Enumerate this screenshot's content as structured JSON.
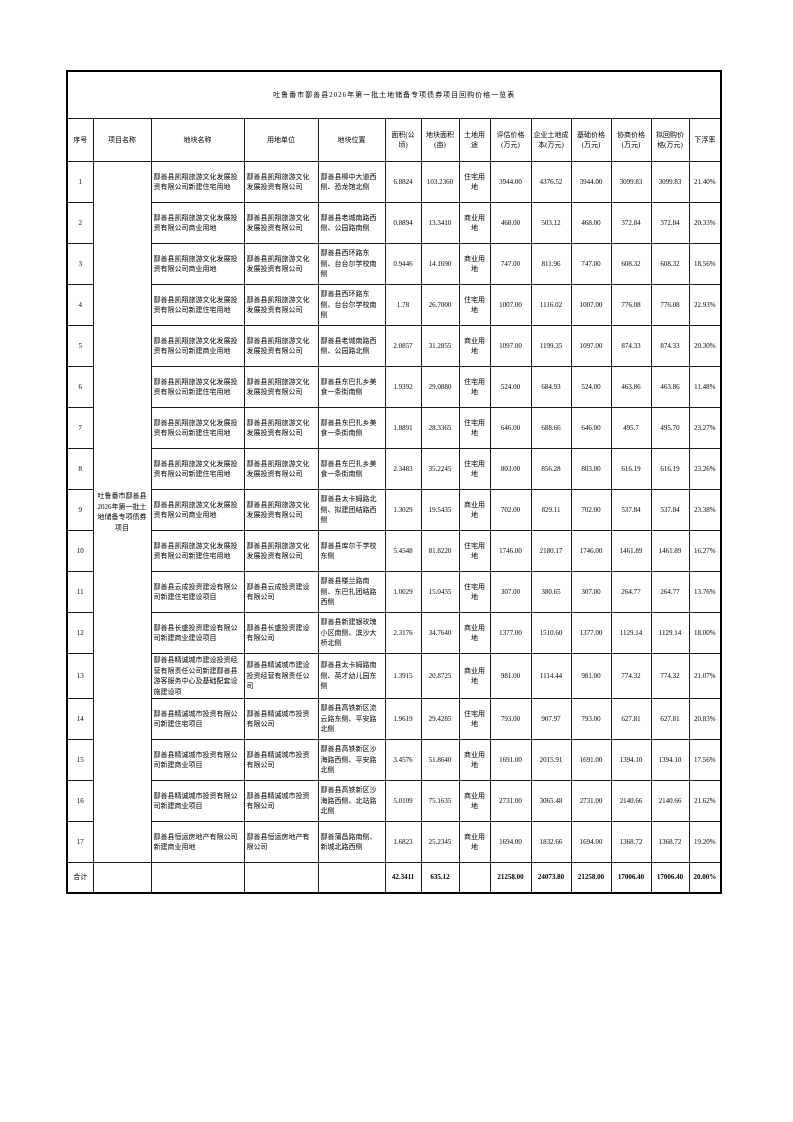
{
  "table": {
    "title": "吐鲁番市鄯善县2026年第一批土地储备专项债券项目回购价格一览表",
    "columns": [
      "序号",
      "项目名称",
      "地块名称",
      "用地单位",
      "地块位置",
      "面积(公顷)",
      "地块面积(亩)",
      "土地用途",
      "评估价格(万元)",
      "企业土地成本(万元)",
      "基础价格(万元)",
      "协商价格(万元)",
      "拟回购价格(万元)",
      "下浮率"
    ],
    "project_name": "吐鲁番市鄯善县2026年第一批土地储备专项债券项目",
    "rows": [
      {
        "no": "1",
        "plot_name": "鄯善县凯翔旅游文化发展投资有限公司新建住宅用地",
        "unit": "鄯善县凯翔旅游文化发展投资有限公司",
        "location": "鄯善县柳中大道西侧、恐龙馆北侧",
        "area_ha": "6.8824",
        "area_mu": "103.2360",
        "land_use": "住宅用地",
        "eval_price": "3944.00",
        "enterprise_cost": "4376.52",
        "base_price": "3944.00",
        "negotiated_price": "3099.83",
        "repurchase_price": "3099.83",
        "discount_rate": "21.40%"
      },
      {
        "no": "2",
        "plot_name": "鄯善县凯翔旅游文化发展投资有限公司商业用地",
        "unit": "鄯善县凯翔旅游文化发展投资有限公司",
        "location": "鄯善县老城南路西侧、公园路南侧",
        "area_ha": "0.8894",
        "area_mu": "13.3410",
        "land_use": "商业用地",
        "eval_price": "468.00",
        "enterprise_cost": "503.12",
        "base_price": "468.00",
        "negotiated_price": "372.84",
        "repurchase_price": "372.84",
        "discount_rate": "20.33%"
      },
      {
        "no": "3",
        "plot_name": "鄯善县凯翔旅游文化发展投资有限公司商业用地",
        "unit": "鄯善县凯翔旅游文化发展投资有限公司",
        "location": "鄯善县西环路东侧、台台尔学校南侧",
        "area_ha": "0.9446",
        "area_mu": "14.1690",
        "land_use": "商业用地",
        "eval_price": "747.00",
        "enterprise_cost": "811.96",
        "base_price": "747.00",
        "negotiated_price": "608.32",
        "repurchase_price": "608.32",
        "discount_rate": "18.56%"
      },
      {
        "no": "4",
        "plot_name": "鄯善县凯翔旅游文化发展投资有限公司新建住宅用地",
        "unit": "鄯善县凯翔旅游文化发展投资有限公司",
        "location": "鄯善县西环路东侧、台台尔学校南侧",
        "area_ha": "1.78",
        "area_mu": "26.7000",
        "land_use": "住宅用地",
        "eval_price": "1007.00",
        "enterprise_cost": "1116.02",
        "base_price": "1007.00",
        "negotiated_price": "776.08",
        "repurchase_price": "776.08",
        "discount_rate": "22.93%"
      },
      {
        "no": "5",
        "plot_name": "鄯善县凯翔旅游文化发展投资有限公司新建商业用地",
        "unit": "鄯善县凯翔旅游文化发展投资有限公司",
        "location": "鄯善县老城南路西侧、公园路北侧",
        "area_ha": "2.0857",
        "area_mu": "31.2855",
        "land_use": "商业用地",
        "eval_price": "1097.00",
        "enterprise_cost": "1199.35",
        "base_price": "1097.00",
        "negotiated_price": "874.33",
        "repurchase_price": "874.33",
        "discount_rate": "20.30%"
      },
      {
        "no": "6",
        "plot_name": "鄯善县凯翔旅游文化发展投资有限公司新建住宅用地",
        "unit": "鄯善县凯翔旅游文化发展投资有限公司",
        "location": "鄯善县东巴扎乡美食一条街南侧",
        "area_ha": "1.9392",
        "area_mu": "29.0880",
        "land_use": "住宅用地",
        "eval_price": "524.00",
        "enterprise_cost": "684.93",
        "base_price": "524.00",
        "negotiated_price": "463.86",
        "repurchase_price": "463.86",
        "discount_rate": "11.48%"
      },
      {
        "no": "7",
        "plot_name": "鄯善县凯翔旅游文化发展投资有限公司新建住宅用地",
        "unit": "鄯善县凯翔旅游文化发展投资有限公司",
        "location": "鄯善县东巴扎乡美食一条街南侧",
        "area_ha": "1.8891",
        "area_mu": "28.3365",
        "land_use": "住宅用地",
        "eval_price": "646.00",
        "enterprise_cost": "688.66",
        "base_price": "646.00",
        "negotiated_price": "495.7",
        "repurchase_price": "495.70",
        "discount_rate": "23.27%"
      },
      {
        "no": "8",
        "plot_name": "鄯善县凯翔旅游文化发展投资有限公司新建住宅用地",
        "unit": "鄯善县凯翔旅游文化发展投资有限公司",
        "location": "鄯善县东巴扎乡美食一条街南侧",
        "area_ha": "2.3483",
        "area_mu": "35.2245",
        "land_use": "住宅用地",
        "eval_price": "803.00",
        "enterprise_cost": "856.28",
        "base_price": "803.00",
        "negotiated_price": "616.19",
        "repurchase_price": "616.19",
        "discount_rate": "23.26%"
      },
      {
        "no": "9",
        "plot_name": "鄯善县凯翔旅游文化发展投资有限公司商业用地",
        "unit": "鄯善县凯翔旅游文化发展投资有限公司",
        "location": "鄯善县太卡姆路北侧、拟建团结路西侧",
        "area_ha": "1.3029",
        "area_mu": "19.5435",
        "land_use": "商业用地",
        "eval_price": "702.00",
        "enterprise_cost": "829.11",
        "base_price": "702.00",
        "negotiated_price": "537.84",
        "repurchase_price": "537.84",
        "discount_rate": "23.38%"
      },
      {
        "no": "10",
        "plot_name": "鄯善县凯翔旅游文化发展投资有限公司新建住宅用地",
        "unit": "鄯善县凯翔旅游文化发展投资有限公司",
        "location": "鄯善县库尔干学校东侧",
        "area_ha": "5.4548",
        "area_mu": "81.8220",
        "land_use": "住宅用地",
        "eval_price": "1746.00",
        "enterprise_cost": "2180.17",
        "base_price": "1746.00",
        "negotiated_price": "1461.89",
        "repurchase_price": "1461.89",
        "discount_rate": "16.27%"
      },
      {
        "no": "11",
        "plot_name": "鄯善县云成投资建设有限公司新建住宅建设项目",
        "unit": "鄯善县云成投资建设有限公司",
        "location": "鄯善县楼兰路南侧、东巴扎团结路西侧",
        "area_ha": "1.0029",
        "area_mu": "15.0435",
        "land_use": "住宅用地",
        "eval_price": "307.00",
        "enterprise_cost": "380.65",
        "base_price": "307.00",
        "negotiated_price": "264.77",
        "repurchase_price": "264.77",
        "discount_rate": "13.76%"
      },
      {
        "no": "12",
        "plot_name": "鄯善县长盛投资建设有限公司新建商业建设项目",
        "unit": "鄯善县长盛投资建设有限公司",
        "location": "鄯善县新建银玫瑰小区南侧、滨沙大桥北侧",
        "area_ha": "2.3176",
        "area_mu": "34.7640",
        "land_use": "商业用地",
        "eval_price": "1377.00",
        "enterprise_cost": "1510.60",
        "base_price": "1377.00",
        "negotiated_price": "1129.14",
        "repurchase_price": "1129.14",
        "discount_rate": "18.00%"
      },
      {
        "no": "13",
        "plot_name": "鄯善县精诚城市建设投资经营有限责任公司新建鄯善县游客服务中心及基础配套设施建设项",
        "unit": "鄯善县精诚城市建设投资经营有限责任公司",
        "location": "鄯善县太卡姆路南侧、英才幼儿园东侧",
        "area_ha": "1.3915",
        "area_mu": "20.8725",
        "land_use": "商业用地",
        "eval_price": "981.00",
        "enterprise_cost": "1114.44",
        "base_price": "981.00",
        "negotiated_price": "774.32",
        "repurchase_price": "774.32",
        "discount_rate": "21.07%"
      },
      {
        "no": "14",
        "plot_name": "鄯善县精诚城市投资有限公司新建住宅项目",
        "unit": "鄯善县精诚城市投资有限公司",
        "location": "鄯善县高铁新区流云路东侧、平安路北侧",
        "area_ha": "1.9619",
        "area_mu": "29.4285",
        "land_use": "住宅用地",
        "eval_price": "793.00",
        "enterprise_cost": "907.97",
        "base_price": "793.00",
        "negotiated_price": "627.81",
        "repurchase_price": "627.81",
        "discount_rate": "20.83%"
      },
      {
        "no": "15",
        "plot_name": "鄯善县精诚城市投资有限公司新建商业项目",
        "unit": "鄯善县精诚城市投资有限公司",
        "location": "鄯善县高铁新区沙海路西侧、平安路北侧",
        "area_ha": "3.4576",
        "area_mu": "51.8640",
        "land_use": "商业用地",
        "eval_price": "1691.00",
        "enterprise_cost": "2015.91",
        "base_price": "1691.00",
        "negotiated_price": "1394.10",
        "repurchase_price": "1394.10",
        "discount_rate": "17.56%"
      },
      {
        "no": "16",
        "plot_name": "鄯善县精诚城市投资有限公司新建商业项目",
        "unit": "鄯善县精诚城市投资有限公司",
        "location": "鄯善县高铁新区沙海路西侧、北站路北侧",
        "area_ha": "5.0109",
        "area_mu": "75.1635",
        "land_use": "商业用地",
        "eval_price": "2731.00",
        "enterprise_cost": "3065.48",
        "base_price": "2731.00",
        "negotiated_price": "2140.66",
        "repurchase_price": "2140.66",
        "discount_rate": "21.62%"
      },
      {
        "no": "17",
        "plot_name": "鄯善县恒运房地产有限公司新建商业用地",
        "unit": "鄯善县恒运房地产有限公司",
        "location": "鄯善蒲昌路南侧、新城北路西侧",
        "area_ha": "1.6823",
        "area_mu": "25.2345",
        "land_use": "商业用地",
        "eval_price": "1694.00",
        "enterprise_cost": "1832.66",
        "base_price": "1694.00",
        "negotiated_price": "1368.72",
        "repurchase_price": "1368.72",
        "discount_rate": "19.20%"
      }
    ],
    "total": {
      "label": "合计",
      "area_ha": "42.3411",
      "area_mu": "635.12",
      "eval_price": "21258.00",
      "enterprise_cost": "24073.80",
      "base_price": "21258.00",
      "negotiated_price": "17006.40",
      "repurchase_price": "17006.40",
      "discount_rate": "20.00%"
    }
  }
}
